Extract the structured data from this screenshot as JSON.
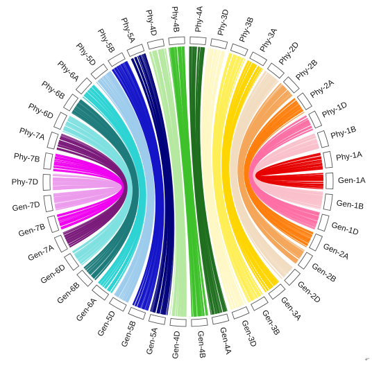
{
  "circos": {
    "top_chromosomes": [
      "Phy-4A",
      "Phy-3D",
      "Phy-3B",
      "Phy-3A",
      "Phy-2D",
      "Phy-2B",
      "Phy-2A",
      "Phy-1D",
      "Phy-1B",
      "Phy-1A",
      "Gen-1A",
      "Gen-1B",
      "Gen-1D",
      "Gen-2A",
      "Gen-2B",
      "Gen-2D",
      "Gen-3A",
      "Gen-3B",
      "Gen-3D",
      "Gen-4A",
      "Gen-4B",
      "Gen-4D",
      "Gen-5A",
      "Gen-5B",
      "Gen-5D",
      "Gen-6A",
      "Gen-6B",
      "Gen-6D",
      "Gen-7A",
      "Gen-7B",
      "Gen-7D",
      "Phy-7D",
      "Phy-7B",
      "Phy-7A",
      "Phy-6D",
      "Phy-6B",
      "Phy-6A",
      "Phy-5D",
      "Phy-5B",
      "Phy-5A",
      "Phy-4D",
      "Phy-4B"
    ],
    "link_groups": [
      {
        "chromosome": "1A",
        "color": "#e60000"
      },
      {
        "chromosome": "1B",
        "color": "#f9c0cb"
      },
      {
        "chromosome": "1D",
        "color": "#ff6fa4"
      },
      {
        "chromosome": "2A",
        "color": "#ff7f0e"
      },
      {
        "chromosome": "2B",
        "color": "#f4a65a"
      },
      {
        "chromosome": "2D",
        "color": "#f2dcc0"
      },
      {
        "chromosome": "3A",
        "color": "#ffd500"
      },
      {
        "chromosome": "3B",
        "color": "#ffee55"
      },
      {
        "chromosome": "3D",
        "color": "#fff7c4"
      },
      {
        "chromosome": "4A",
        "color": "#1e6e1e"
      },
      {
        "chromosome": "4B",
        "color": "#3ec12a"
      },
      {
        "chromosome": "4D",
        "color": "#b5e8a0"
      },
      {
        "chromosome": "5A",
        "color": "#00007a"
      },
      {
        "chromosome": "5B",
        "color": "#1515c8"
      },
      {
        "chromosome": "5D",
        "color": "#9ccbec"
      },
      {
        "chromosome": "6A",
        "color": "#2ed3d3"
      },
      {
        "chromosome": "6B",
        "color": "#1e7b7b"
      },
      {
        "chromosome": "6D",
        "color": "#7ee0e0"
      },
      {
        "chromosome": "7A",
        "color": "#7a1a7a"
      },
      {
        "chromosome": "7B",
        "color": "#f000f0"
      },
      {
        "chromosome": "7D",
        "color": "#ec9bec"
      }
    ],
    "corner_glyph": "⬐"
  }
}
